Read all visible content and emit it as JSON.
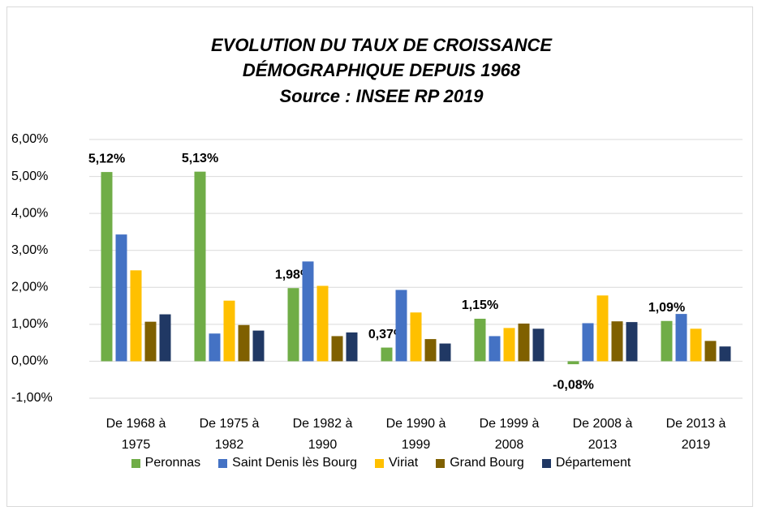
{
  "chart_data": {
    "type": "bar",
    "title": "EVOLUTION DU TAUX DE CROISSANCE DÉMOGRAPHIQUE DEPUIS 1968",
    "subtitle": "Source : INSEE RP 2019",
    "categories": [
      "De 1968 à 1975",
      "De 1975 à 1982",
      "De 1982 à 1990",
      "De 1990 à 1999",
      "De 1999 à 2008",
      "De 2008 à 2013",
      "De 2013 à 2019"
    ],
    "series": [
      {
        "name": "Peronnas",
        "color": "#70ad47",
        "values": [
          5.12,
          5.13,
          1.98,
          0.37,
          1.15,
          -0.08,
          1.09
        ],
        "value_labels": [
          "5,12%",
          "5,13%",
          "1,98%",
          "0,37%",
          "1,15%",
          "-0,08%",
          "1,09%"
        ]
      },
      {
        "name": "Saint Denis lès Bourg",
        "color": "#4472c4",
        "values": [
          3.43,
          0.75,
          2.7,
          1.93,
          0.68,
          1.03,
          1.28
        ]
      },
      {
        "name": "Viriat",
        "color": "#ffc000",
        "values": [
          2.46,
          1.64,
          2.04,
          1.32,
          0.9,
          1.78,
          0.88
        ]
      },
      {
        "name": "Grand Bourg",
        "color": "#7f6000",
        "values": [
          1.07,
          0.98,
          0.68,
          0.6,
          1.02,
          1.08,
          0.55
        ]
      },
      {
        "name": "Département",
        "color": "#203864",
        "values": [
          1.27,
          0.83,
          0.78,
          0.48,
          0.88,
          1.06,
          0.4
        ]
      }
    ],
    "ylim": [
      -1,
      6
    ],
    "yticks": [
      {
        "value": -1,
        "label": "-1,00%"
      },
      {
        "value": 0,
        "label": "0,00%"
      },
      {
        "value": 1,
        "label": "1,00%"
      },
      {
        "value": 2,
        "label": "2,00%"
      },
      {
        "value": 3,
        "label": "3,00%"
      },
      {
        "value": 4,
        "label": "4,00%"
      },
      {
        "value": 5,
        "label": "5,00%"
      },
      {
        "value": 6,
        "label": "6,00%"
      }
    ],
    "grid": true,
    "legend": "bottom"
  }
}
